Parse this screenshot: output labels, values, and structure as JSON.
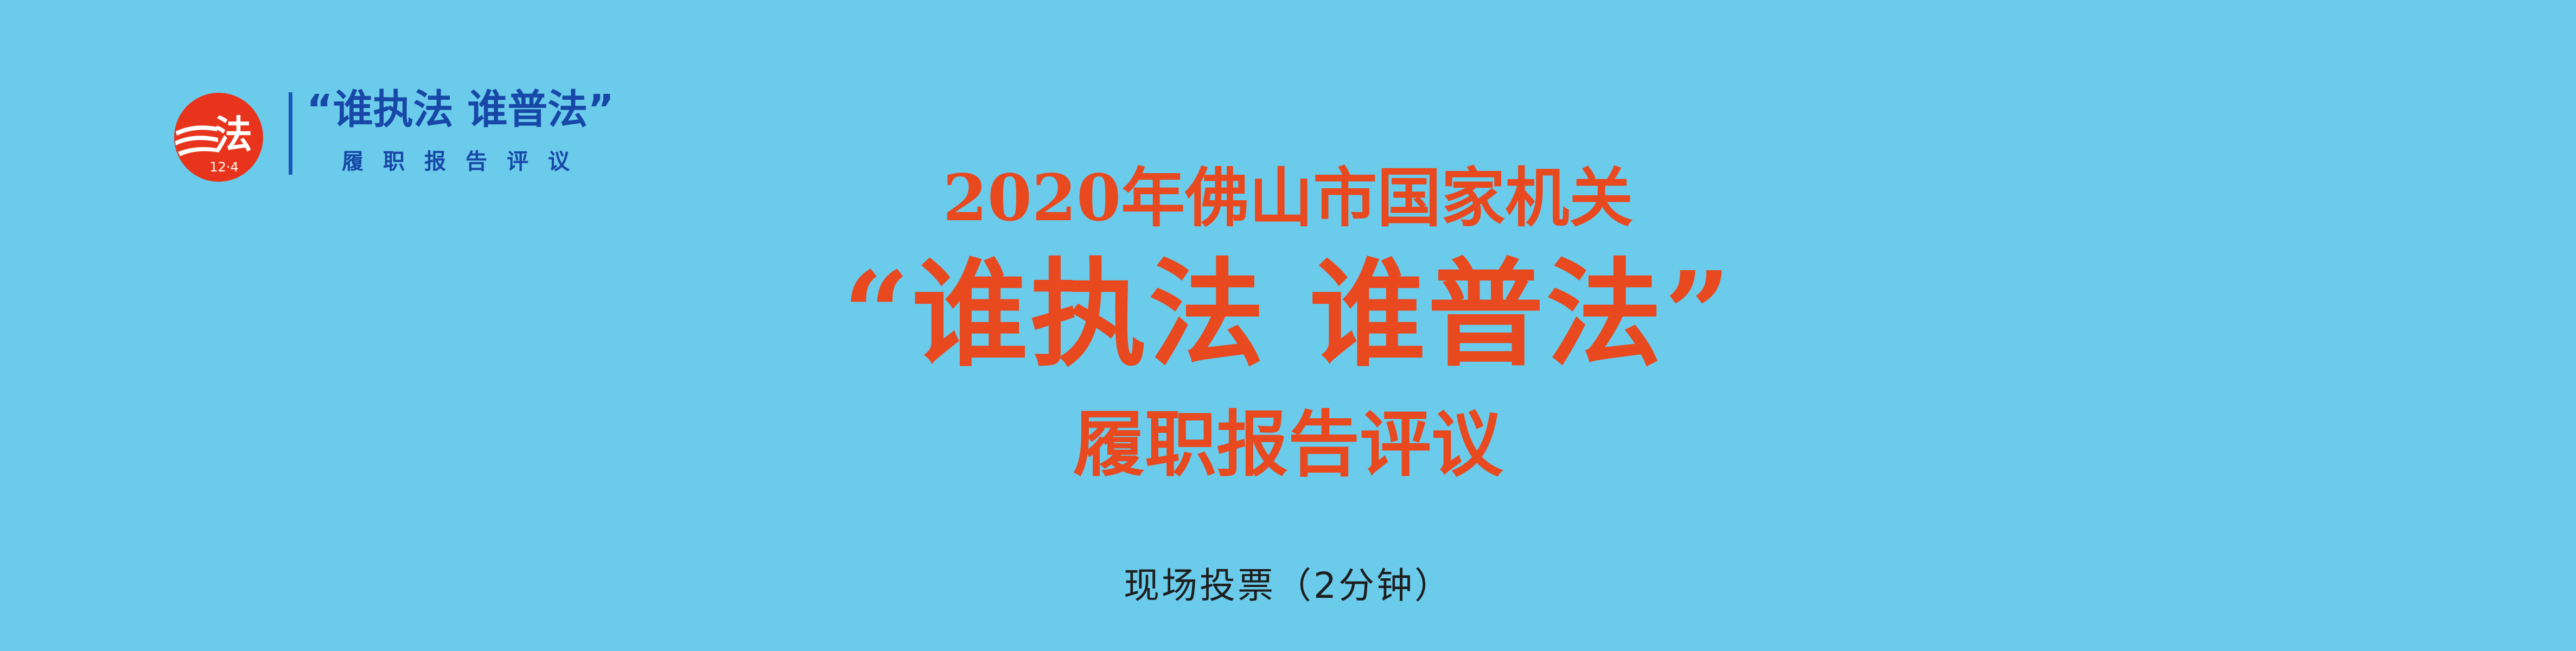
{
  "colors": {
    "background": "#6BCBEB",
    "title_red": "#E8491F",
    "logo_blue": "#1748A8",
    "text_dark": "#1E1E1E",
    "logo_circle": "#E8341C"
  },
  "logo": {
    "icon": "law-day-emblem-icon",
    "emblem_text": "法",
    "emblem_date": "12·4",
    "slogan": "“谁执法 谁普法”",
    "subtitle": "履职报告评议"
  },
  "title": {
    "year_line": "2020年佛山市国家机关",
    "main_line": "“谁执法  谁普法”",
    "sub_line": "履职报告评议"
  },
  "vote": {
    "label": "现场投票（2分钟）"
  }
}
